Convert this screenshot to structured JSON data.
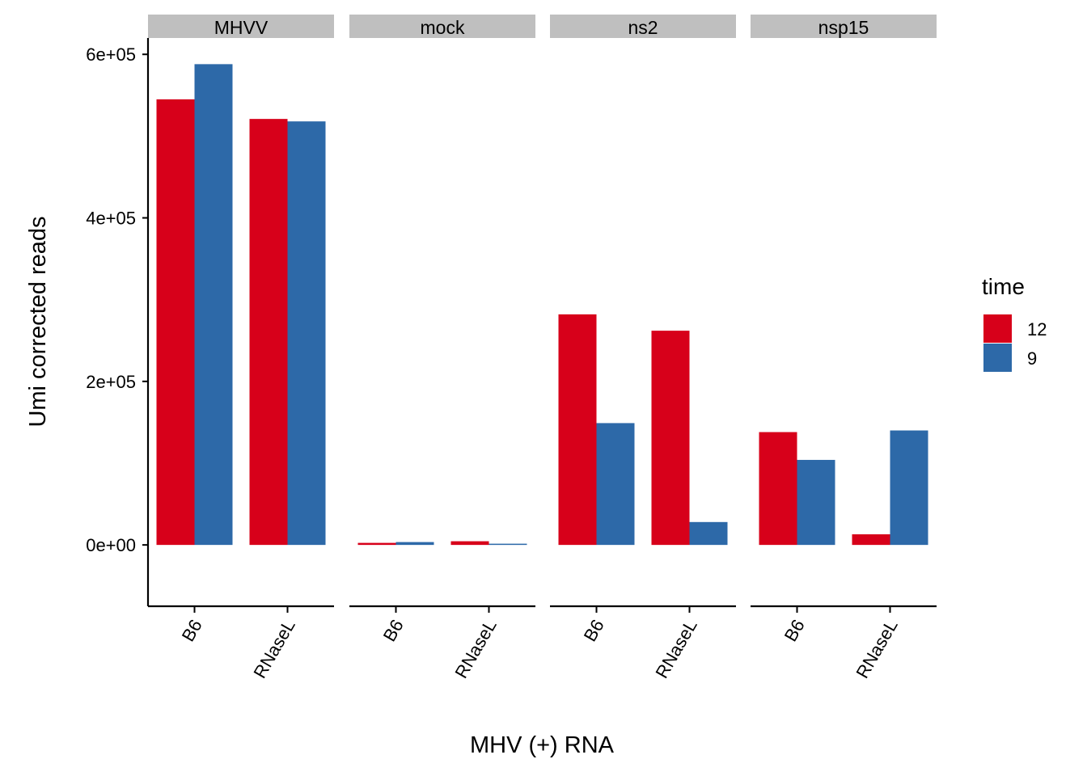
{
  "chart_data": {
    "type": "bar",
    "xlabel": "MHV (+) RNA",
    "ylabel": "Umi corrected reads",
    "ylim": [
      -75000,
      620000
    ],
    "yticks": [
      0,
      200000,
      400000,
      600000
    ],
    "ytick_labels": [
      "0e+00",
      "2e+05",
      "4e+05",
      "6e+05"
    ],
    "categories": [
      "B6",
      "RNaseL"
    ],
    "legend": {
      "title": "time",
      "position": "right"
    },
    "series": [
      {
        "name": "12",
        "color": "#D7001A"
      },
      {
        "name": "9",
        "color": "#2D69A8"
      }
    ],
    "facets": [
      {
        "name": "MHVV",
        "values": {
          "12": [
            545000,
            521000
          ],
          "9": [
            588000,
            518000
          ]
        }
      },
      {
        "name": "mock",
        "values": {
          "12": [
            2500,
            4500
          ],
          "9": [
            3500,
            1500
          ]
        }
      },
      {
        "name": "ns2",
        "values": {
          "12": [
            282000,
            262000
          ],
          "9": [
            149000,
            28000
          ]
        }
      },
      {
        "name": "nsp15",
        "values": {
          "12": [
            138000,
            13000
          ],
          "9": [
            104000,
            140000
          ]
        }
      }
    ],
    "grid": false
  }
}
